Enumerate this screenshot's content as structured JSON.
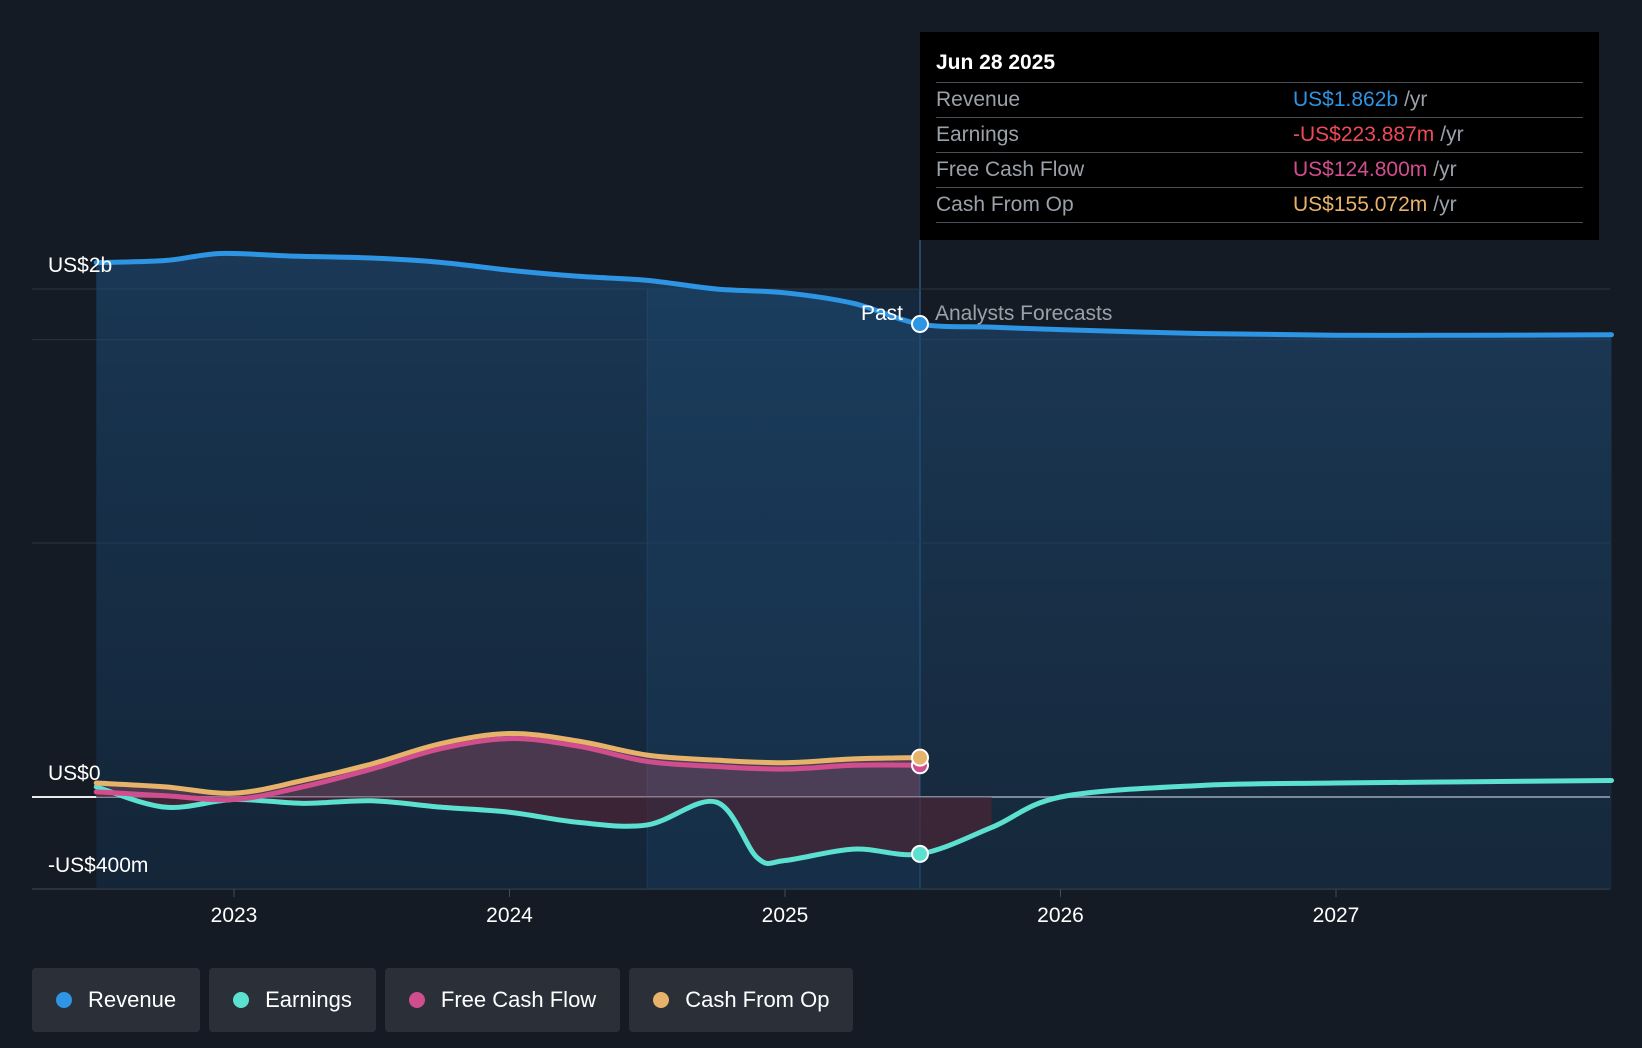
{
  "chart_data": {
    "type": "area",
    "y_axis_labels": [
      "US$2b",
      "US$0",
      "-US$400m"
    ],
    "ylim": [
      -400,
      2200
    ],
    "x_ticks": [
      {
        "label": "2023",
        "x": 2023.0
      },
      {
        "label": "2024",
        "x": 2024.0
      },
      {
        "label": "2025",
        "x": 2025.0
      },
      {
        "label": "2026",
        "x": 2026.0
      },
      {
        "label": "2027",
        "x": 2027.0
      }
    ],
    "x_range": [
      2022.27,
      2028.0
    ],
    "past_label": "Past",
    "forecast_label": "Analysts Forecasts",
    "highlight_start": 2024.5,
    "divider_x": 2025.49,
    "series": [
      {
        "name": "Revenue",
        "color": "#2d95e3",
        "points": [
          [
            2022.5,
            2104
          ],
          [
            2022.75,
            2112
          ],
          [
            2022.95,
            2140
          ],
          [
            2023.2,
            2130
          ],
          [
            2023.5,
            2122
          ],
          [
            2023.75,
            2105
          ],
          [
            2024.0,
            2074
          ],
          [
            2024.25,
            2050
          ],
          [
            2024.5,
            2034
          ],
          [
            2024.75,
            2000
          ],
          [
            2025.0,
            1985
          ],
          [
            2025.25,
            1943
          ],
          [
            2025.49,
            1862
          ],
          [
            2025.75,
            1850
          ],
          [
            2026.0,
            1840
          ],
          [
            2026.5,
            1825
          ],
          [
            2027.0,
            1818
          ],
          [
            2027.5,
            1818
          ],
          [
            2028.0,
            1820
          ]
        ]
      },
      {
        "name": "Earnings",
        "color": "#5ce0d0",
        "points": [
          [
            2022.5,
            40
          ],
          [
            2022.75,
            -40
          ],
          [
            2023.0,
            -10
          ],
          [
            2023.25,
            -25
          ],
          [
            2023.5,
            -15
          ],
          [
            2023.75,
            -40
          ],
          [
            2024.0,
            -60
          ],
          [
            2024.25,
            -100
          ],
          [
            2024.5,
            -110
          ],
          [
            2024.75,
            -20
          ],
          [
            2024.9,
            -240
          ],
          [
            2025.0,
            -250
          ],
          [
            2025.25,
            -205
          ],
          [
            2025.49,
            -224
          ],
          [
            2025.75,
            -120
          ],
          [
            2026.0,
            0
          ],
          [
            2026.5,
            45
          ],
          [
            2027.0,
            55
          ],
          [
            2027.5,
            60
          ],
          [
            2028.0,
            65
          ]
        ]
      },
      {
        "name": "Free Cash Flow",
        "color": "#d14e8e",
        "points": [
          [
            2022.5,
            20
          ],
          [
            2022.75,
            5
          ],
          [
            2023.0,
            -10
          ],
          [
            2023.25,
            40
          ],
          [
            2023.5,
            110
          ],
          [
            2023.75,
            190
          ],
          [
            2024.0,
            230
          ],
          [
            2024.25,
            200
          ],
          [
            2024.5,
            140
          ],
          [
            2024.75,
            120
          ],
          [
            2025.0,
            110
          ],
          [
            2025.25,
            125
          ],
          [
            2025.49,
            125
          ]
        ]
      },
      {
        "name": "Cash From Op",
        "color": "#e7b36a",
        "points": [
          [
            2022.5,
            55
          ],
          [
            2022.75,
            40
          ],
          [
            2023.0,
            15
          ],
          [
            2023.25,
            65
          ],
          [
            2023.5,
            130
          ],
          [
            2023.75,
            210
          ],
          [
            2024.0,
            250
          ],
          [
            2024.25,
            220
          ],
          [
            2024.5,
            165
          ],
          [
            2024.75,
            145
          ],
          [
            2025.0,
            135
          ],
          [
            2025.25,
            150
          ],
          [
            2025.49,
            155
          ]
        ]
      }
    ]
  },
  "tooltip": {
    "date": "Jun 28 2025",
    "rows": [
      {
        "label": "Revenue",
        "value": "US$1.862b",
        "unit": "/yr",
        "color": "#2d95e3"
      },
      {
        "label": "Earnings",
        "value": "-US$223.887m",
        "unit": "/yr",
        "color": "#ee4a55"
      },
      {
        "label": "Free Cash Flow",
        "value": "US$124.800m",
        "unit": "/yr",
        "color": "#d14e8e"
      },
      {
        "label": "Cash From Op",
        "value": "US$155.072m",
        "unit": "/yr",
        "color": "#e7b36a"
      }
    ]
  },
  "legend": [
    {
      "label": "Revenue",
      "color": "#2d95e3"
    },
    {
      "label": "Earnings",
      "color": "#5ce0d0"
    },
    {
      "label": "Free Cash Flow",
      "color": "#d14e8e"
    },
    {
      "label": "Cash From Op",
      "color": "#e7b36a"
    }
  ]
}
